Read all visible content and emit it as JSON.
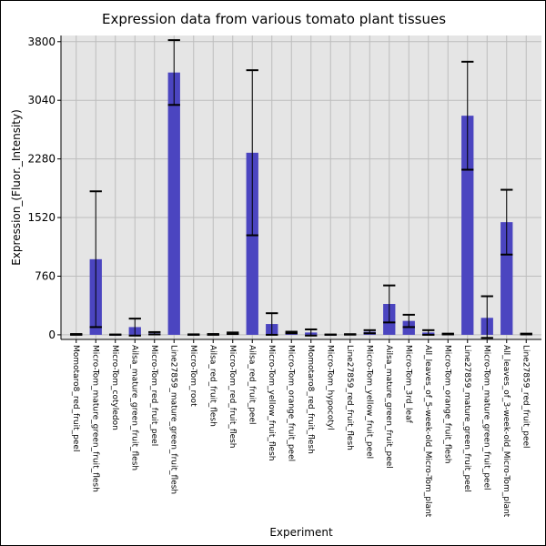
{
  "chart_data": {
    "type": "bar",
    "title": "Expression data from various tomato plant tissues",
    "xlabel": "Experiment",
    "ylabel": "Expression_(Fluor._Intensity)",
    "yticks": [
      0,
      760,
      1520,
      2280,
      3040,
      3800
    ],
    "ylim": [
      -60,
      3880
    ],
    "grid": true,
    "bar_color": "#4b45c0",
    "plot_background": "#e5e5e5",
    "categories": [
      "Momotaro8_red_fruit_peel",
      "Micro-Tom_mature_green_fruit_flesh",
      "Micro-Tom_cotyledon",
      "Ailsa_mature_green_fruit_flesh",
      "Micro-Tom_red_fruit_peel",
      "Line27859_mature_green_fruit_flesh",
      "Micro-Tom_root",
      "Ailsa_red_fruit_flesh",
      "Micro-Tom_red_fruit_flesh",
      "Ailsa_red_fruit_peel",
      "Micro-Tom_yellow_fruit_flesh",
      "Micro-Tom_orange_fruit_peel",
      "Momotaro8_red_fruit_flesh",
      "Micro-Tom_hypocotyl",
      "Line27859_red_fruit_flesh",
      "Micro-Tom_yellow_fruit_peel",
      "Ailsa_mature_green_fruit_peel",
      "Micro-Tom_3rd_leaf",
      "All_leaves_of_5-week-old_Micro-Tom_plant",
      "Micro-Tom_orange_fruit_flesh",
      "Line27859_mature_green_fruit_peel",
      "Micro-Tom_mature_green_fruit_peel",
      "All_leaves_of_3-week-old_Micro-Tom_plant",
      "Line27859_red_fruit_peel"
    ],
    "values": [
      5,
      980,
      2,
      100,
      20,
      3400,
      3,
      5,
      20,
      2360,
      140,
      30,
      30,
      2,
      5,
      40,
      400,
      180,
      30,
      10,
      2840,
      220,
      1460,
      10
    ],
    "errors": [
      5,
      880,
      2,
      110,
      15,
      420,
      3,
      5,
      10,
      1070,
      140,
      10,
      40,
      2,
      3,
      20,
      240,
      80,
      30,
      5,
      700,
      280,
      420,
      5
    ]
  }
}
